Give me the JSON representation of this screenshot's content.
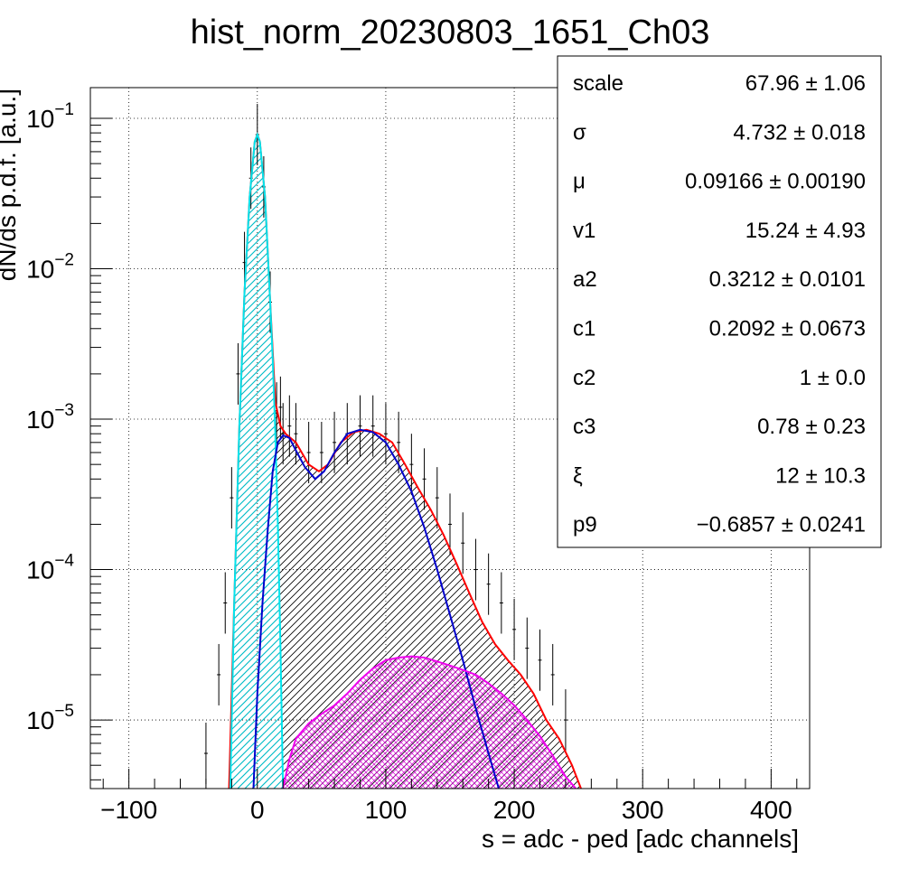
{
  "chart_data": {
    "type": "line",
    "title": "hist_norm_20230803_1651_Ch03",
    "xlabel": "s = adc - ped [adc channels]",
    "ylabel": "dN/ds p.d.f. [a.u.]",
    "xlim": [
      -130,
      430
    ],
    "ylim": [
      3.5e-06,
      0.16
    ],
    "yscale": "log",
    "grid": true,
    "x_ticks": [
      {
        "value": -100,
        "label": "−100"
      },
      {
        "value": 0,
        "label": "0"
      },
      {
        "value": 100,
        "label": "100"
      },
      {
        "value": 200,
        "label": "200"
      },
      {
        "value": 300,
        "label": "300"
      },
      {
        "value": 400,
        "label": "400"
      }
    ],
    "y_ticks": [
      {
        "value": 0.1,
        "base": "10",
        "exp": "−1"
      },
      {
        "value": 0.01,
        "base": "10",
        "exp": "−2"
      },
      {
        "value": 0.001,
        "base": "10",
        "exp": "−3"
      },
      {
        "value": 0.0001,
        "base": "10",
        "exp": "−4"
      },
      {
        "value": 1e-05,
        "base": "10",
        "exp": "−5"
      }
    ],
    "series": [
      {
        "color": "#000000",
        "kind": "histogram",
        "x": [
          -40,
          -30,
          -25,
          -20,
          -15,
          -10,
          -5,
          0,
          5,
          10,
          15,
          18,
          20,
          25,
          30,
          40,
          50,
          60,
          70,
          80,
          90,
          100,
          110,
          120,
          130,
          140,
          150,
          160,
          170,
          180,
          190,
          200,
          210,
          220,
          230,
          240
        ],
        "y": [
          6e-06,
          2e-05,
          6e-05,
          0.0003,
          0.002,
          0.011,
          0.04,
          0.078,
          0.035,
          0.006,
          0.0011,
          0.0012,
          0.0008,
          0.0009,
          0.0008,
          0.0006,
          0.0006,
          0.0007,
          0.0008,
          0.0009,
          0.0009,
          0.0008,
          0.0007,
          0.0005,
          0.0004,
          0.0003,
          0.0002,
          0.00015,
          0.0001,
          8e-05,
          6e-05,
          4e-05,
          3e-05,
          2.5e-05,
          2e-05,
          1e-05
        ]
      },
      {
        "color": "#ff0000",
        "kind": "total fit",
        "x": [
          -22,
          -18,
          -14,
          -10,
          -6,
          -2,
          0,
          2,
          6,
          10,
          14,
          18,
          22,
          30,
          40,
          48,
          55,
          65,
          75,
          85,
          95,
          105,
          115,
          125,
          135,
          145,
          155,
          165,
          175,
          185,
          195,
          205,
          215,
          225,
          235,
          245,
          252
        ],
        "y": [
          3.5e-06,
          6e-05,
          0.0009,
          0.007,
          0.03,
          0.07,
          0.078,
          0.07,
          0.03,
          0.006,
          0.0013,
          0.0009,
          0.0008,
          0.0007,
          0.0005,
          0.00045,
          0.0005,
          0.0007,
          0.00082,
          0.00085,
          0.0008,
          0.0007,
          0.0005,
          0.00035,
          0.00025,
          0.00017,
          0.00011,
          7e-05,
          4.5e-05,
          3.2e-05,
          2.5e-05,
          2e-05,
          1.5e-05,
          1e-05,
          7.5e-06,
          5e-06,
          3.5e-06
        ]
      },
      {
        "color": "#00e5ee",
        "kind": "pedestal",
        "x": [
          -21,
          -18,
          -14,
          -10,
          -6,
          -2,
          0,
          2,
          6,
          10,
          12,
          14,
          16,
          18,
          20
        ],
        "y": [
          3.5e-06,
          6e-05,
          0.0009,
          0.007,
          0.03,
          0.07,
          0.078,
          0.07,
          0.03,
          0.006,
          0.0025,
          0.0008,
          0.0002,
          3e-05,
          3.5e-06
        ]
      },
      {
        "color": "#0000cc",
        "kind": "signal",
        "x": [
          -3,
          0,
          4,
          8,
          12,
          16,
          20,
          25,
          30,
          37,
          45,
          52,
          60,
          70,
          80,
          90,
          100,
          110,
          120,
          130,
          140,
          150,
          160,
          170,
          180,
          188
        ],
        "y": [
          3.5e-06,
          1.5e-05,
          6e-05,
          0.00018,
          0.00045,
          0.0007,
          0.00078,
          0.00075,
          0.00062,
          0.00048,
          0.0004,
          0.00045,
          0.0006,
          0.0008,
          0.00085,
          0.00082,
          0.0007,
          0.0005,
          0.00033,
          0.00019,
          0.0001,
          5e-05,
          2.5e-05,
          1.2e-05,
          6e-06,
          3.5e-06
        ]
      },
      {
        "color": "#ee00ee",
        "kind": "second component",
        "x": [
          20,
          25,
          30,
          40,
          50,
          60,
          70,
          80,
          90,
          100,
          110,
          120,
          130,
          140,
          150,
          160,
          170,
          180,
          190,
          200,
          210,
          220,
          230,
          240,
          248
        ],
        "y": [
          3.5e-06,
          5.5e-06,
          7.5e-06,
          9.5e-06,
          1.1e-05,
          1.25e-05,
          1.5e-05,
          1.85e-05,
          2.2e-05,
          2.5e-05,
          2.6e-05,
          2.65e-05,
          2.6e-05,
          2.45e-05,
          2.3e-05,
          2.15e-05,
          2e-05,
          1.75e-05,
          1.5e-05,
          1.25e-05,
          1e-05,
          7.8e-06,
          5.8e-06,
          4.2e-06,
          3.5e-06
        ]
      }
    ],
    "stats": [
      {
        "name": "scale",
        "value": "67.96 ± 1.06"
      },
      {
        "name": "σ",
        "value": "4.732 ± 0.018"
      },
      {
        "name": "μ",
        "value": "0.09166 ± 0.00190"
      },
      {
        "name": "v1",
        "value": "15.24 ± 4.93"
      },
      {
        "name": "a2",
        "value": "0.3212 ± 0.0101"
      },
      {
        "name": "c1",
        "value": "0.2092 ± 0.0673"
      },
      {
        "name": "c2",
        "value": "1 ± 0.0"
      },
      {
        "name": "c3",
        "value": "0.78 ± 0.23"
      },
      {
        "name": "ξ",
        "value": "12 ± 10.3"
      },
      {
        "name": "p9",
        "value": "−0.6857 ± 0.0241"
      }
    ]
  }
}
